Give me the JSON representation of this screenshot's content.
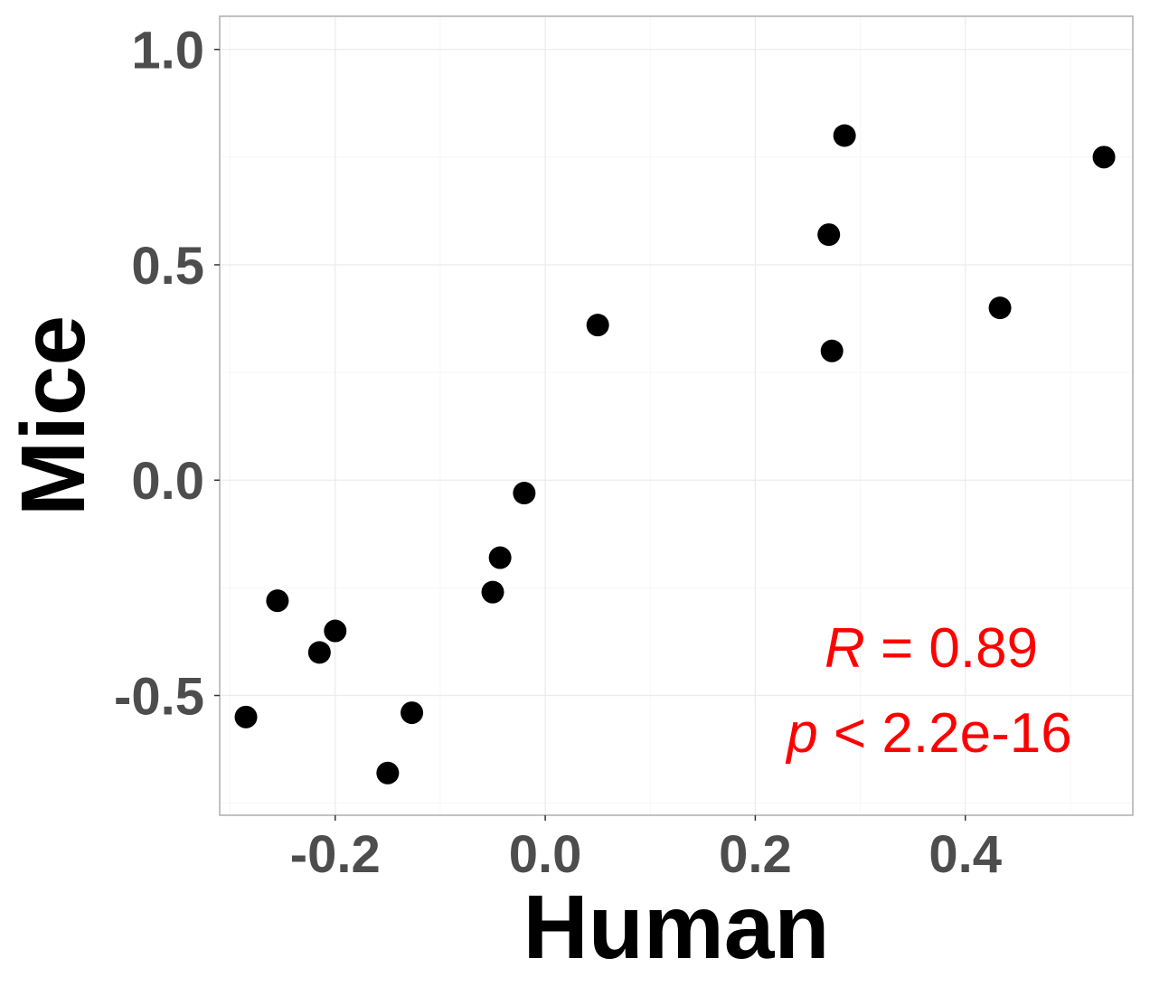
{
  "chart_data": {
    "type": "scatter",
    "xlabel": "Human",
    "ylabel": "Mice",
    "xlim": [
      -0.31,
      0.5595
    ],
    "ylim": [
      -0.778,
      1.077
    ],
    "x_ticks": [
      -0.2,
      0.0,
      0.2,
      0.4
    ],
    "x_tick_labels": [
      "-0.2",
      "0.0",
      "0.2",
      "0.4"
    ],
    "y_ticks": [
      -0.5,
      0.0,
      0.5,
      1.0
    ],
    "y_tick_labels": [
      "-0.5",
      "0.0",
      "0.5",
      "1.0"
    ],
    "grid": true,
    "point_color": "#000000",
    "points": [
      {
        "x": -0.285,
        "y": -0.55
      },
      {
        "x": -0.255,
        "y": -0.28
      },
      {
        "x": -0.215,
        "y": -0.4
      },
      {
        "x": -0.2,
        "y": -0.35
      },
      {
        "x": -0.15,
        "y": -0.68
      },
      {
        "x": -0.127,
        "y": -0.54
      },
      {
        "x": -0.05,
        "y": -0.26
      },
      {
        "x": -0.043,
        "y": -0.18
      },
      {
        "x": -0.02,
        "y": -0.03
      },
      {
        "x": 0.05,
        "y": 0.36
      },
      {
        "x": 0.27,
        "y": 0.57
      },
      {
        "x": 0.273,
        "y": 0.3
      },
      {
        "x": 0.285,
        "y": 0.8
      },
      {
        "x": 0.433,
        "y": 0.4
      },
      {
        "x": 0.532,
        "y": 0.75
      }
    ],
    "annotation": {
      "r_symbol": "R",
      "r_text": " = 0.89",
      "p_symbol": "p",
      "p_text": " < 2.2e-16",
      "color": "#ff0000",
      "position": "bottom-right"
    }
  }
}
